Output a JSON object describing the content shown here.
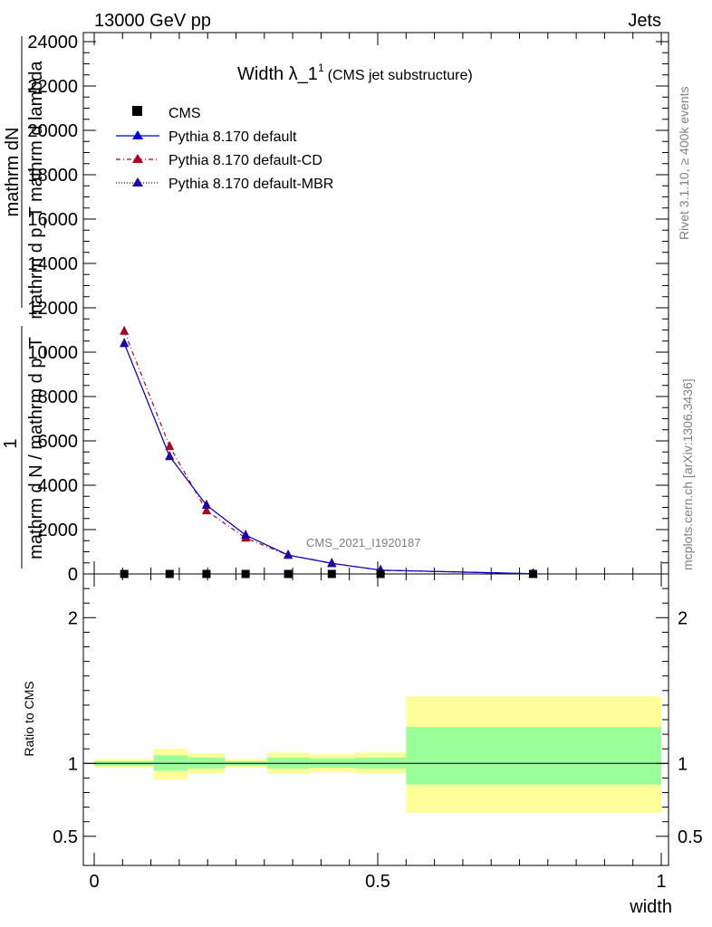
{
  "header": {
    "left": "13000 GeV pp",
    "right": "Jets"
  },
  "side": {
    "rivet": "Rivet 3.1.10, ≥ 400k events",
    "mcplots": "mcplots.cern.ch [arXiv:1306.3436]"
  },
  "colors": {
    "default": "#0000cc",
    "cd": "#aa0022",
    "mbr": "#2200aa",
    "band_outer": "#ffff99",
    "band_inner": "#99ff99"
  },
  "chart_data": {
    "type": "line",
    "title": "Width λ_1",
    "title_sup": "1",
    "subtitle": "(CMS jet substructure)",
    "watermark": "CMS_2021_I1920187",
    "ylabel_main_1": "mathrm dN",
    "ylabel_main_2": "mathrm d p_T mathrm d lambda",
    "ylabel_main_3": "1",
    "ylabel_main_4": "mathrm d N / mathrm d p_T",
    "ylabel_ratio": "Ratio to CMS",
    "xlabel": "width",
    "xlim": [
      0,
      1
    ],
    "ylim_main": [
      0,
      24000
    ],
    "ylim_ratio": [
      0.3,
      2.3
    ],
    "x_ticks": [
      0,
      0.5,
      1
    ],
    "x_tick_labels": [
      "0",
      "0.5",
      "1"
    ],
    "y_ticks_main": [
      0,
      2000,
      4000,
      6000,
      8000,
      10000,
      12000,
      14000,
      16000,
      18000,
      20000,
      22000,
      24000
    ],
    "y_tick_labels_main": [
      "0",
      "2000",
      "4000",
      "6000",
      "8000",
      "10000",
      "12000",
      "14000",
      "16000",
      "18000",
      "20000",
      "22000",
      "24000"
    ],
    "y_ticks_ratio": [
      0.5,
      1,
      2
    ],
    "y_tick_labels_ratio": [
      "0.5",
      "1",
      "2"
    ],
    "legend": [
      "CMS",
      "Pythia 8.170 default",
      "Pythia 8.170 default-CD",
      "Pythia 8.170 default-MBR"
    ],
    "cms": {
      "x": [
        0.053,
        0.133,
        0.198,
        0.267,
        0.342,
        0.419,
        0.505,
        0.774
      ],
      "y": [
        0,
        0,
        0,
        0,
        0,
        0,
        0,
        0
      ]
    },
    "series": [
      {
        "name": "Pythia 8.170 default",
        "x": [
          0.053,
          0.133,
          0.198,
          0.267,
          0.342,
          0.419,
          0.505,
          0.774
        ],
        "y": [
          10400,
          5300,
          3100,
          1750,
          850,
          480,
          170,
          10
        ]
      },
      {
        "name": "Pythia 8.170 default-CD",
        "x": [
          0.053,
          0.133,
          0.198,
          0.267,
          0.342,
          0.419,
          0.505,
          0.774
        ],
        "y": [
          10950,
          5750,
          2850,
          1620,
          850,
          480,
          170,
          10
        ]
      },
      {
        "name": "Pythia 8.170 default-MBR",
        "x": [
          0.053,
          0.133,
          0.198,
          0.267,
          0.342,
          0.419,
          0.505,
          0.774
        ],
        "y": [
          10400,
          5300,
          3100,
          1750,
          850,
          480,
          170,
          10
        ]
      }
    ],
    "ratio_bands": [
      {
        "x0": 0.0,
        "x1": 0.105,
        "outer": [
          0.97,
          1.03
        ],
        "inner": [
          0.985,
          1.015
        ]
      },
      {
        "x0": 0.105,
        "x1": 0.165,
        "outer": [
          0.89,
          1.1
        ],
        "inner": [
          0.95,
          1.055
        ]
      },
      {
        "x0": 0.165,
        "x1": 0.23,
        "outer": [
          0.93,
          1.07
        ],
        "inner": [
          0.965,
          1.04
        ]
      },
      {
        "x0": 0.23,
        "x1": 0.305,
        "outer": [
          0.97,
          1.03
        ],
        "inner": [
          0.985,
          1.015
        ]
      },
      {
        "x0": 0.305,
        "x1": 0.38,
        "outer": [
          0.93,
          1.075
        ],
        "inner": [
          0.965,
          1.04
        ]
      },
      {
        "x0": 0.38,
        "x1": 0.46,
        "outer": [
          0.94,
          1.065
        ],
        "inner": [
          0.97,
          1.035
        ]
      },
      {
        "x0": 0.46,
        "x1": 0.55,
        "outer": [
          0.93,
          1.075
        ],
        "inner": [
          0.965,
          1.04
        ]
      },
      {
        "x0": 0.55,
        "x1": 1.0,
        "outer": [
          0.66,
          1.46
        ],
        "inner": [
          0.855,
          1.25
        ]
      }
    ]
  }
}
